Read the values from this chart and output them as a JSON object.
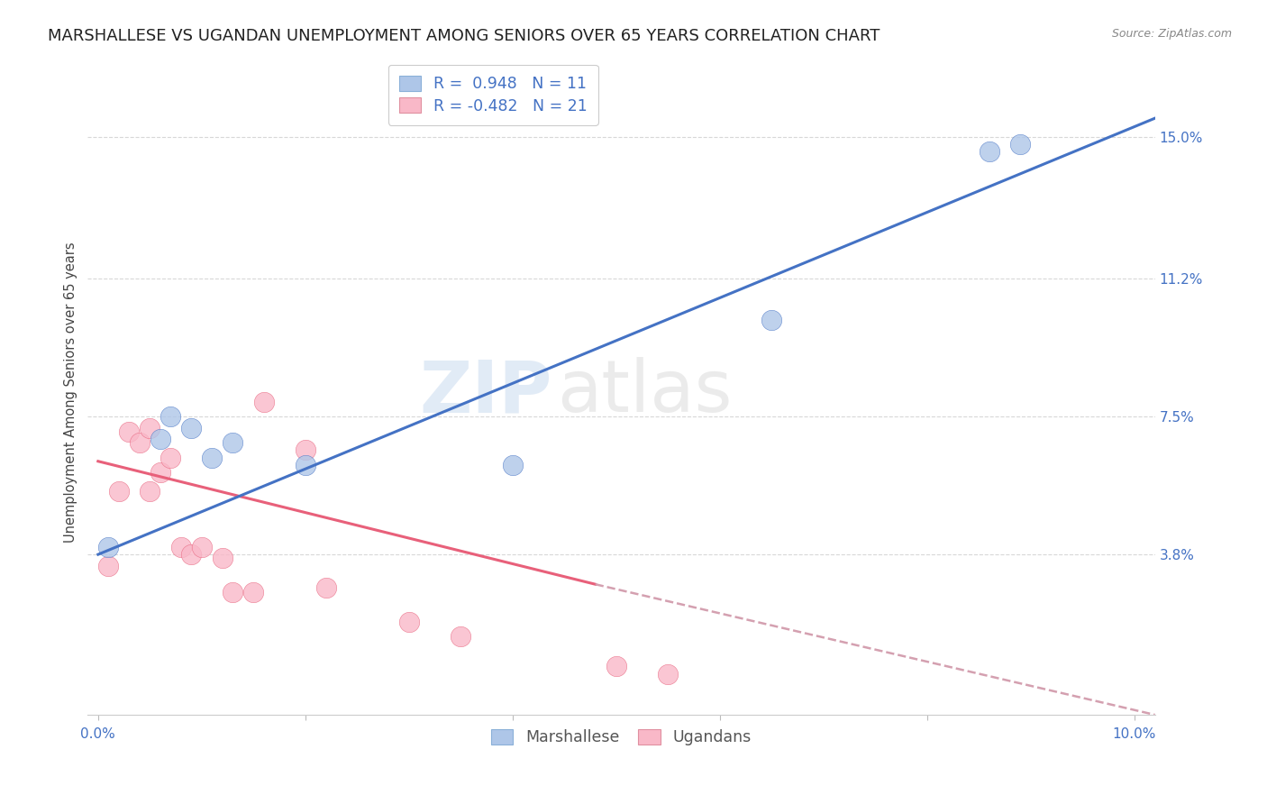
{
  "title": "MARSHALLESE VS UGANDAN UNEMPLOYMENT AMONG SENIORS OVER 65 YEARS CORRELATION CHART",
  "source": "Source: ZipAtlas.com",
  "ylabel": "Unemployment Among Seniors over 65 years",
  "watermark_zip": "ZIP",
  "watermark_atlas": "atlas",
  "xlim": [
    -0.001,
    0.102
  ],
  "ylim": [
    -0.005,
    0.168
  ],
  "xticks": [
    0.0,
    0.02,
    0.04,
    0.06,
    0.08,
    0.1
  ],
  "xtick_labels": [
    "0.0%",
    "",
    "",
    "",
    "",
    "10.0%"
  ],
  "ytick_labels_right": [
    "15.0%",
    "11.2%",
    "7.5%",
    "3.8%"
  ],
  "ytick_values_right": [
    0.15,
    0.112,
    0.075,
    0.038
  ],
  "marshallese_R": 0.948,
  "marshallese_N": 11,
  "ugandan_R": -0.482,
  "ugandan_N": 21,
  "marshallese_color": "#aec6e8",
  "ugandan_color": "#f9b8c8",
  "marshallese_line_color": "#4472c4",
  "ugandan_line_color": "#e8607a",
  "ugandan_line_dash_color": "#d4a0b0",
  "legend_blue_fill": "#aec6e8",
  "legend_pink_fill": "#f9b8c8",
  "marshallese_x": [
    0.001,
    0.006,
    0.007,
    0.009,
    0.011,
    0.013,
    0.02,
    0.04,
    0.065,
    0.086,
    0.089
  ],
  "marshallese_y": [
    0.04,
    0.069,
    0.075,
    0.072,
    0.064,
    0.068,
    0.062,
    0.062,
    0.101,
    0.146,
    0.148
  ],
  "ugandan_x": [
    0.001,
    0.002,
    0.003,
    0.004,
    0.005,
    0.005,
    0.006,
    0.007,
    0.008,
    0.009,
    0.01,
    0.012,
    0.013,
    0.015,
    0.016,
    0.02,
    0.022,
    0.03,
    0.035,
    0.05,
    0.055
  ],
  "ugandan_y": [
    0.035,
    0.055,
    0.071,
    0.068,
    0.072,
    0.055,
    0.06,
    0.064,
    0.04,
    0.038,
    0.04,
    0.037,
    0.028,
    0.028,
    0.079,
    0.066,
    0.029,
    0.02,
    0.016,
    0.008,
    0.006
  ],
  "regression_blue_x0": 0.0,
  "regression_blue_y0": 0.038,
  "regression_blue_x1": 0.102,
  "regression_blue_y1": 0.155,
  "regression_pink_solid_x0": 0.0,
  "regression_pink_solid_y0": 0.063,
  "regression_pink_solid_x1": 0.048,
  "regression_pink_solid_y1": 0.03,
  "regression_pink_dash_x0": 0.048,
  "regression_pink_dash_y0": 0.03,
  "regression_pink_dash_x1": 0.102,
  "regression_pink_dash_y1": -0.005,
  "background_color": "#ffffff",
  "grid_color": "#d8d8d8",
  "title_fontsize": 13,
  "axis_label_fontsize": 10.5,
  "tick_fontsize": 11,
  "legend_fontsize": 12.5
}
